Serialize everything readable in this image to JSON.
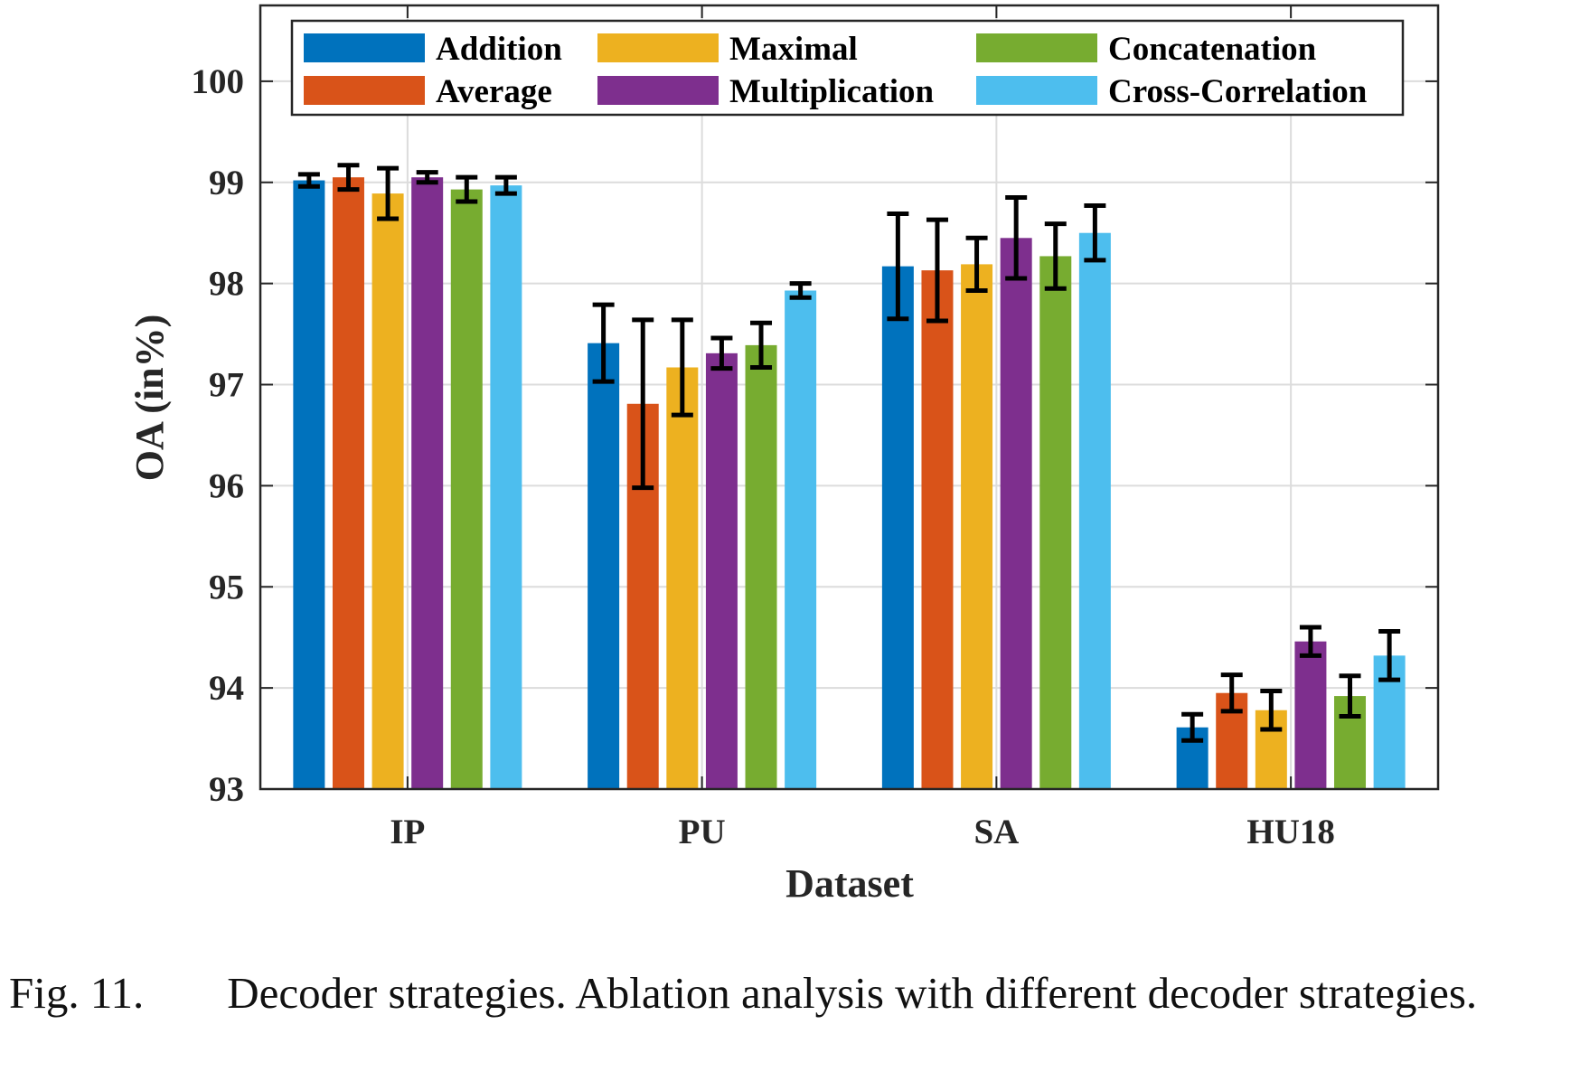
{
  "chart_data": {
    "type": "bar",
    "xlabel": "Dataset",
    "ylabel": "OA (in%)",
    "ylim": [
      93,
      100.75
    ],
    "yticks": [
      93,
      94,
      95,
      96,
      97,
      98,
      99,
      100
    ],
    "categories": [
      "IP",
      "PU",
      "SA",
      "HU18"
    ],
    "grid": true,
    "legend_position": "top",
    "error_bars": true,
    "series": [
      {
        "name": "Addition",
        "color": "#0072BD",
        "values": [
          99.02,
          97.41,
          98.17,
          93.61
        ],
        "errors": [
          0.06,
          0.38,
          0.52,
          0.13
        ]
      },
      {
        "name": "Average",
        "color": "#D95319",
        "values": [
          99.05,
          96.81,
          98.13,
          93.95
        ],
        "errors": [
          0.12,
          0.83,
          0.5,
          0.18
        ]
      },
      {
        "name": "Maximal",
        "color": "#EDB120",
        "values": [
          98.89,
          97.17,
          98.19,
          93.78
        ],
        "errors": [
          0.25,
          0.47,
          0.26,
          0.19
        ]
      },
      {
        "name": "Multiplication",
        "color": "#7E2F8E",
        "values": [
          99.05,
          97.31,
          98.45,
          94.46
        ],
        "errors": [
          0.05,
          0.15,
          0.4,
          0.14
        ]
      },
      {
        "name": "Concatenation",
        "color": "#77AC30",
        "values": [
          98.93,
          97.39,
          98.27,
          93.92
        ],
        "errors": [
          0.12,
          0.22,
          0.32,
          0.2
        ]
      },
      {
        "name": "Cross-Correlation",
        "color": "#4DBEEE",
        "values": [
          98.97,
          97.93,
          98.5,
          94.32
        ],
        "errors": [
          0.08,
          0.07,
          0.27,
          0.24
        ]
      }
    ]
  },
  "caption": {
    "label": "Fig. 11.",
    "text": "Decoder strategies. Ablation analysis with different decoder strategies."
  }
}
